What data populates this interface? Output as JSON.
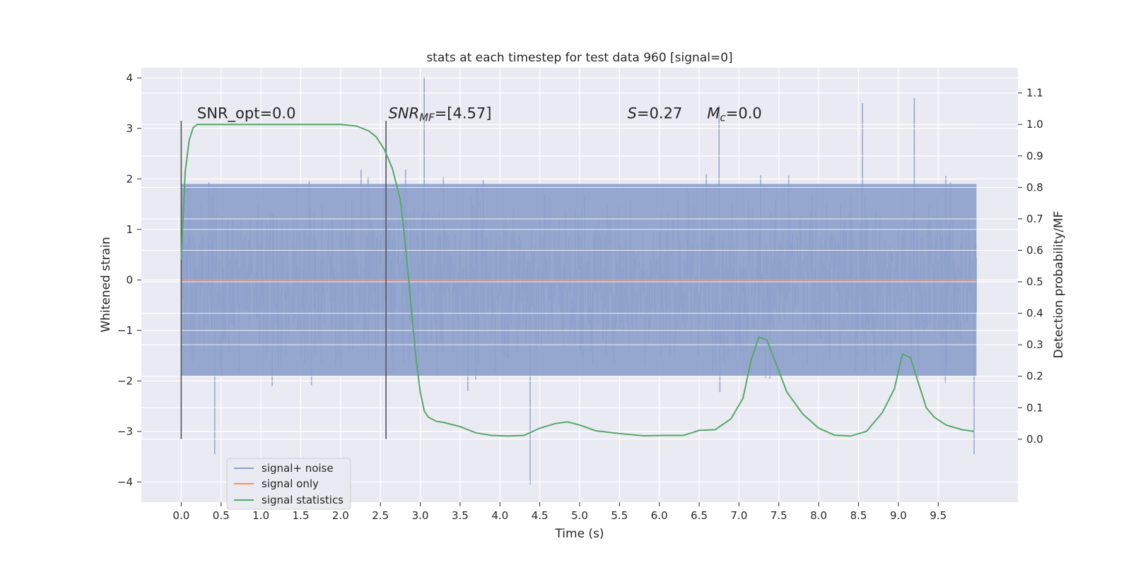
{
  "chart_data": {
    "type": "line",
    "title": "stats at each timestep for test data 960 [signal=0]",
    "xlabel": "Time (s)",
    "ylabel": "Whitened strain",
    "ylabel_right": "Detection probability/MF",
    "xlim": [
      -0.5,
      10.5
    ],
    "ylim": [
      -4.4,
      4.2
    ],
    "ylim_right": [
      -0.2,
      1.18
    ],
    "x_ticks": [
      "0.0",
      "0.5",
      "1.0",
      "1.5",
      "2.0",
      "2.5",
      "3.0",
      "3.5",
      "4.0",
      "4.5",
      "5.0",
      "5.5",
      "6.0",
      "6.5",
      "7.0",
      "7.5",
      "8.0",
      "8.5",
      "9.0",
      "9.5"
    ],
    "x_tick_values": [
      0.0,
      0.5,
      1.0,
      1.5,
      2.0,
      2.5,
      3.0,
      3.5,
      4.0,
      4.5,
      5.0,
      5.5,
      6.0,
      6.5,
      7.0,
      7.5,
      8.0,
      8.5,
      9.0,
      9.5
    ],
    "y_ticks": [
      "−4",
      "−3",
      "−2",
      "−1",
      "0",
      "1",
      "2",
      "3",
      "4"
    ],
    "y_tick_values": [
      -4,
      -3,
      -2,
      -1,
      0,
      1,
      2,
      3,
      4
    ],
    "y_right_ticks": [
      "0.0",
      "0.1",
      "0.2",
      "0.3",
      "0.4",
      "0.5",
      "0.6",
      "0.7",
      "0.8",
      "0.9",
      "1.0",
      "1.1"
    ],
    "y_right_tick_values": [
      0.0,
      0.1,
      0.2,
      0.3,
      0.4,
      0.5,
      0.6,
      0.7,
      0.8,
      0.9,
      1.0,
      1.1
    ],
    "grid": true,
    "legend_position": "lower-left",
    "series": [
      {
        "name": "signal+ noise",
        "color": "#8da0cb",
        "axis": "left",
        "x_range": [
          0.0,
          9.98
        ],
        "core_band": [
          -1.9,
          1.9
        ],
        "envelope_points": [
          {
            "x": 0.42,
            "y": -3.45
          },
          {
            "x": 3.05,
            "y": 4.02
          },
          {
            "x": 4.38,
            "y": -4.05
          },
          {
            "x": 6.75,
            "y": 3.45
          },
          {
            "x": 8.55,
            "y": 3.5
          },
          {
            "x": 9.2,
            "y": 3.6
          },
          {
            "x": 9.95,
            "y": -3.45
          }
        ]
      },
      {
        "name": "signal only",
        "color": "#fc8d62",
        "axis": "left",
        "x": [
          0.0,
          9.98
        ],
        "y": [
          0.0,
          0.0
        ]
      },
      {
        "name": "signal statistics",
        "color": "#55a868",
        "axis": "right",
        "x": [
          0.0,
          0.05,
          0.1,
          0.15,
          0.2,
          0.3,
          0.5,
          1.0,
          1.5,
          2.0,
          2.2,
          2.35,
          2.45,
          2.55,
          2.65,
          2.75,
          2.8,
          2.85,
          2.9,
          2.95,
          3.0,
          3.05,
          3.1,
          3.2,
          3.3,
          3.5,
          3.7,
          3.9,
          4.1,
          4.3,
          4.5,
          4.7,
          4.85,
          5.0,
          5.2,
          5.5,
          5.8,
          6.1,
          6.3,
          6.5,
          6.7,
          6.9,
          7.05,
          7.15,
          7.25,
          7.35,
          7.45,
          7.6,
          7.8,
          8.0,
          8.2,
          8.4,
          8.6,
          8.8,
          8.95,
          9.05,
          9.15,
          9.25,
          9.35,
          9.45,
          9.6,
          9.8,
          9.95
        ],
        "y": [
          0.57,
          0.85,
          0.95,
          0.99,
          1.0,
          1.0,
          1.0,
          1.0,
          1.0,
          1.0,
          0.995,
          0.98,
          0.96,
          0.92,
          0.86,
          0.76,
          0.65,
          0.52,
          0.38,
          0.25,
          0.15,
          0.09,
          0.07,
          0.057,
          0.053,
          0.04,
          0.02,
          0.012,
          0.01,
          0.012,
          0.035,
          0.05,
          0.055,
          0.045,
          0.027,
          0.018,
          0.011,
          0.012,
          0.012,
          0.028,
          0.03,
          0.065,
          0.13,
          0.25,
          0.325,
          0.315,
          0.25,
          0.15,
          0.08,
          0.035,
          0.013,
          0.01,
          0.025,
          0.085,
          0.16,
          0.27,
          0.26,
          0.18,
          0.1,
          0.07,
          0.045,
          0.03,
          0.025
        ]
      }
    ],
    "vertical_markers": [
      {
        "x": 0.0,
        "y_from": -3.15,
        "y_to": 3.15
      },
      {
        "x": 2.57,
        "y_from": -3.15,
        "y_to": 3.15
      }
    ],
    "annotations": [
      {
        "text": "SNR_opt=0.0",
        "kind": "plain",
        "x": 0.2,
        "y": 3.2
      },
      {
        "kind": "math",
        "main": "SNR",
        "sub": "MF",
        "suffix": "=[4.57]",
        "x": 2.6,
        "y": 3.2
      },
      {
        "kind": "math",
        "main": "S",
        "sub": "",
        "suffix": "=0.27",
        "x": 5.6,
        "y": 3.2
      },
      {
        "kind": "math",
        "main": "M",
        "sub": "c",
        "suffix": "=0.0",
        "x": 6.6,
        "y": 3.2
      }
    ]
  }
}
